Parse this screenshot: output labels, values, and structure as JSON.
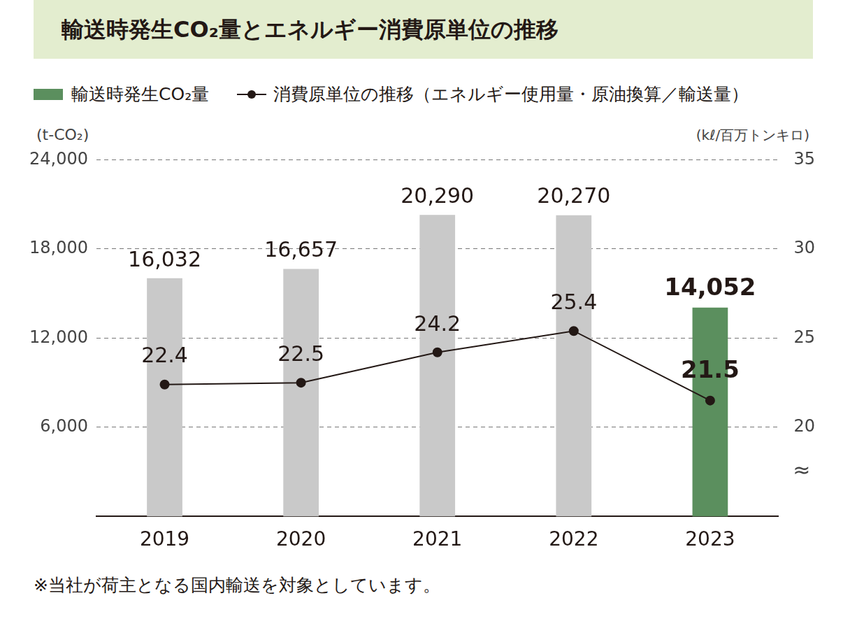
{
  "chart_data": {
    "type": "bar",
    "title": "輸送時発生CO₂量とエネルギー消費原単位の推移",
    "categories": [
      "2019",
      "2020",
      "2021",
      "2022",
      "2023"
    ],
    "series": [
      {
        "name": "輸送時発生CO₂量",
        "type": "bar",
        "color": "#5b8f5e",
        "colors": [
          "#c9c9c9",
          "#c9c9c9",
          "#c9c9c9",
          "#c9c9c9",
          "#5b8f5e"
        ],
        "values": [
          16032,
          16657,
          20290,
          20270,
          14052
        ],
        "value_labels": [
          "16,032",
          "16,657",
          "20,290",
          "20,270",
          "14,052"
        ]
      },
      {
        "name": "消費原単位の推移（エネルギー使用量・原油換算／輸送量）",
        "type": "line",
        "axis": "y2",
        "color": "#231815",
        "marker": "circle",
        "values": [
          22.4,
          22.5,
          24.2,
          25.4,
          21.5
        ]
      }
    ],
    "y_label": "(t-CO₂)",
    "y2_label": "(kℓ/百万トンキロ)",
    "ylim": [
      0,
      24000
    ],
    "yticks": [
      {
        "value": 6000,
        "label": "6,000"
      },
      {
        "value": 12000,
        "label": "12,000"
      },
      {
        "value": 18000,
        "label": "18,000"
      },
      {
        "value": 24000,
        "label": "24,000"
      }
    ],
    "y2lim": [
      15,
      35
    ],
    "y2ticks": [
      20,
      25,
      30,
      35
    ],
    "grid": true,
    "legend": "top",
    "data_labels": true,
    "annotations": [
      "≈"
    ],
    "footnote": "※当社が荷主となる国内輸送を対象としています。"
  }
}
